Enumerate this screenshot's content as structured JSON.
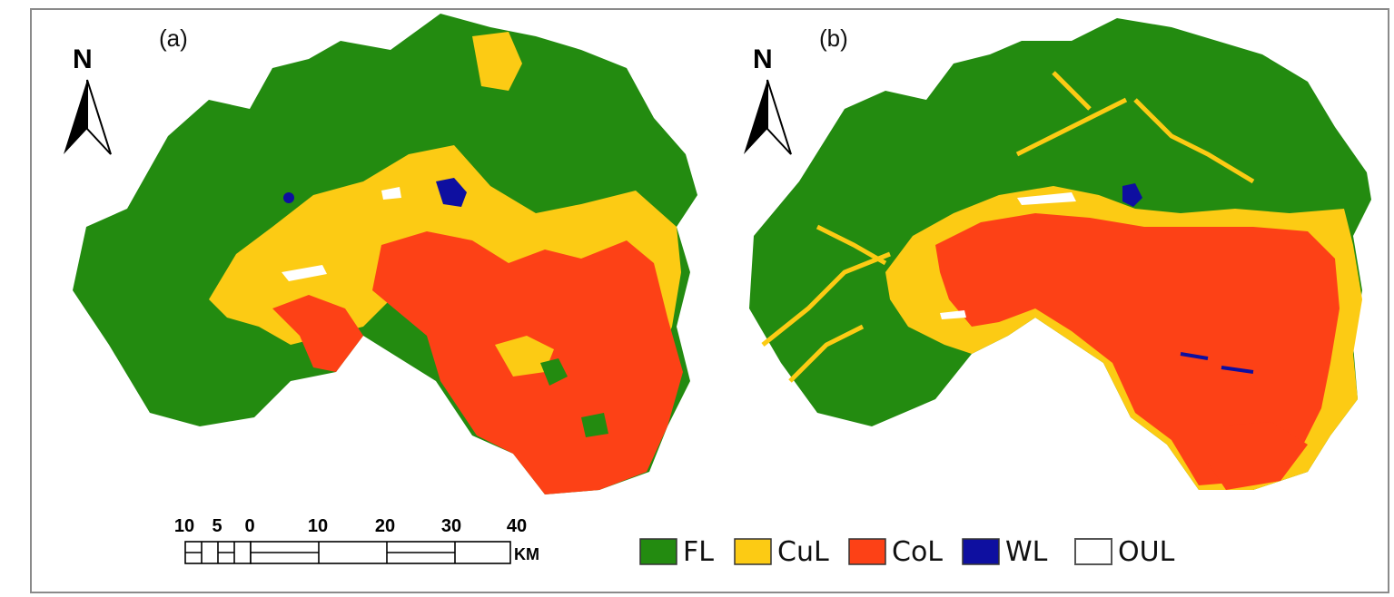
{
  "panels": [
    {
      "label": "(a)",
      "north": "N"
    },
    {
      "label": "(b)",
      "north": "N"
    }
  ],
  "scale_bar": {
    "ticks": [
      "10",
      "5",
      "0",
      "10",
      "20",
      "30",
      "40"
    ],
    "unit": "KM"
  },
  "legend": [
    {
      "code": "FL",
      "color": "#238b10"
    },
    {
      "code": "CuL",
      "color": "#fccb14"
    },
    {
      "code": "CoL",
      "color": "#fd4116"
    },
    {
      "code": "WL",
      "color": "#0e0fa0"
    },
    {
      "code": "OUL",
      "color": "#ffffff"
    }
  ]
}
